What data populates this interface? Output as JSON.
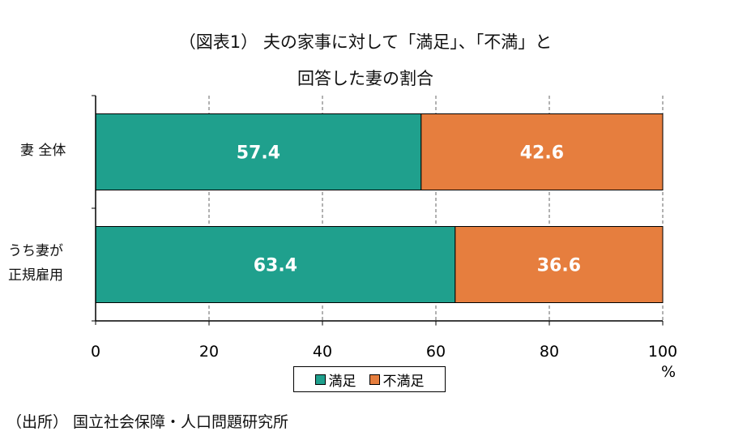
{
  "chart_data": {
    "type": "bar",
    "orientation": "horizontal",
    "stacked": true,
    "title_line1": "（図表1） 夫の家事に対して「満足」、「不満」と",
    "title_line2": "回答した妻の割合",
    "categories": [
      "妻 全体",
      "うち妻が\n正規雇用"
    ],
    "category_lines": [
      [
        "妻 全体"
      ],
      [
        "うち妻が",
        "正規雇用"
      ]
    ],
    "series": [
      {
        "name": "満足",
        "values": [
          57.4,
          63.4
        ],
        "color": "#1fa08d"
      },
      {
        "name": "不満足",
        "values": [
          42.6,
          36.6
        ],
        "color": "#e67e3e"
      }
    ],
    "xlim": [
      0,
      100
    ],
    "xticks": [
      0,
      20,
      40,
      60,
      80,
      100
    ],
    "xunit": "%",
    "grid": "vertical dashed",
    "legend_position": "bottom"
  },
  "source": "（出所） 国立社会保障・人口問題研究所"
}
